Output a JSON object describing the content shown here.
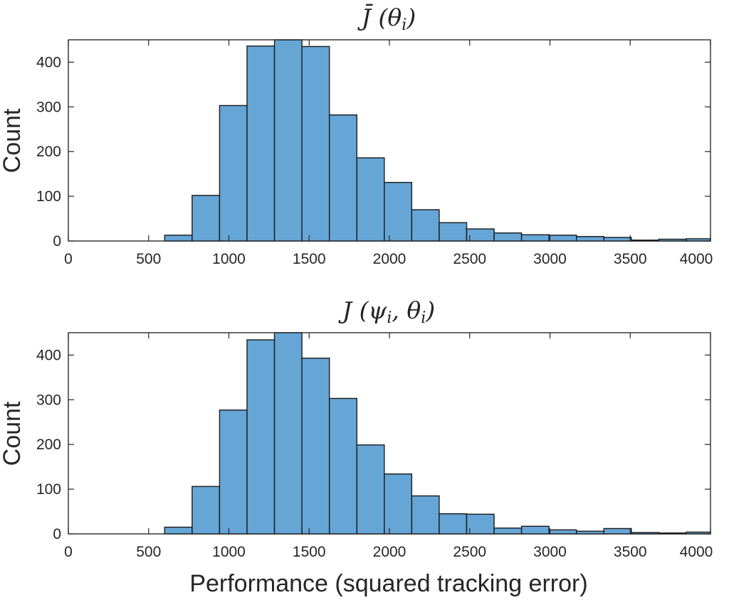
{
  "chart_data": [
    {
      "type": "bar",
      "title": "J̄ (θ",
      "title_sub": "i",
      "title_close": ")",
      "ylabel": "Count",
      "xlabel": "",
      "xlim": [
        0,
        4000
      ],
      "ylim": [
        0,
        450
      ],
      "xticks": [
        "0",
        "500",
        "1000",
        "1500",
        "2000",
        "2500",
        "3000",
        "3500",
        "4000"
      ],
      "yticks": [
        "0",
        "100",
        "200",
        "300",
        "400"
      ],
      "bin_width": 171,
      "bin_edges_start": 600,
      "values": [
        13,
        102,
        303,
        436,
        450,
        435,
        282,
        186,
        131,
        70,
        41,
        27,
        18,
        14,
        13,
        10,
        8,
        2,
        4,
        5
      ],
      "color": "#66a6d6"
    },
    {
      "type": "bar",
      "title": "J (ψ",
      "title_sub": "i",
      "title_mid": ", θ",
      "title_sub2": "i",
      "title_close": ")",
      "ylabel": "Count",
      "xlabel": "Performance (squared tracking error)",
      "xlim": [
        0,
        4000
      ],
      "ylim": [
        0,
        450
      ],
      "xticks": [
        "0",
        "500",
        "1000",
        "1500",
        "2000",
        "2500",
        "3000",
        "3500",
        "4000"
      ],
      "yticks": [
        "0",
        "100",
        "200",
        "300",
        "400"
      ],
      "bin_width": 171,
      "bin_edges_start": 600,
      "values": [
        15,
        106,
        277,
        434,
        450,
        393,
        303,
        199,
        134,
        85,
        45,
        44,
        13,
        17,
        9,
        6,
        12,
        3,
        2,
        4
      ],
      "color": "#66a6d6"
    }
  ]
}
